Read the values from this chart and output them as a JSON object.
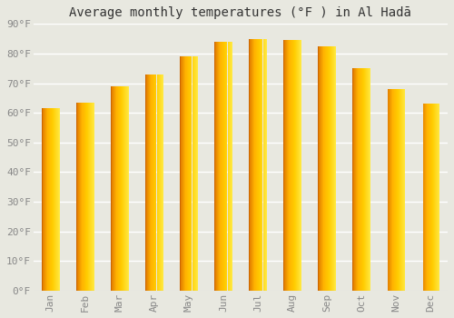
{
  "months": [
    "Jan",
    "Feb",
    "Mar",
    "Apr",
    "May",
    "Jun",
    "Jul",
    "Aug",
    "Sep",
    "Oct",
    "Nov",
    "Dec"
  ],
  "values": [
    61.5,
    63.5,
    69.0,
    73.0,
    79.0,
    84.0,
    85.0,
    84.5,
    82.5,
    75.0,
    68.0,
    63.0
  ],
  "bar_color_main": "#FFB300",
  "bar_color_left": "#E07800",
  "bar_color_right": "#FFD060",
  "title": "Average monthly temperatures (°F ) in Al Hadā",
  "ylim": [
    0,
    90
  ],
  "yticks": [
    0,
    10,
    20,
    30,
    40,
    50,
    60,
    70,
    80,
    90
  ],
  "ytick_labels": [
    "0°F",
    "10°F",
    "20°F",
    "30°F",
    "40°F",
    "50°F",
    "60°F",
    "70°F",
    "80°F",
    "90°F"
  ],
  "background_color": "#e8e8e0",
  "plot_bg_color": "#e8e8e0",
  "grid_color": "#ffffff",
  "title_fontsize": 10,
  "tick_fontsize": 8,
  "font_family": "monospace",
  "bar_width": 0.5
}
